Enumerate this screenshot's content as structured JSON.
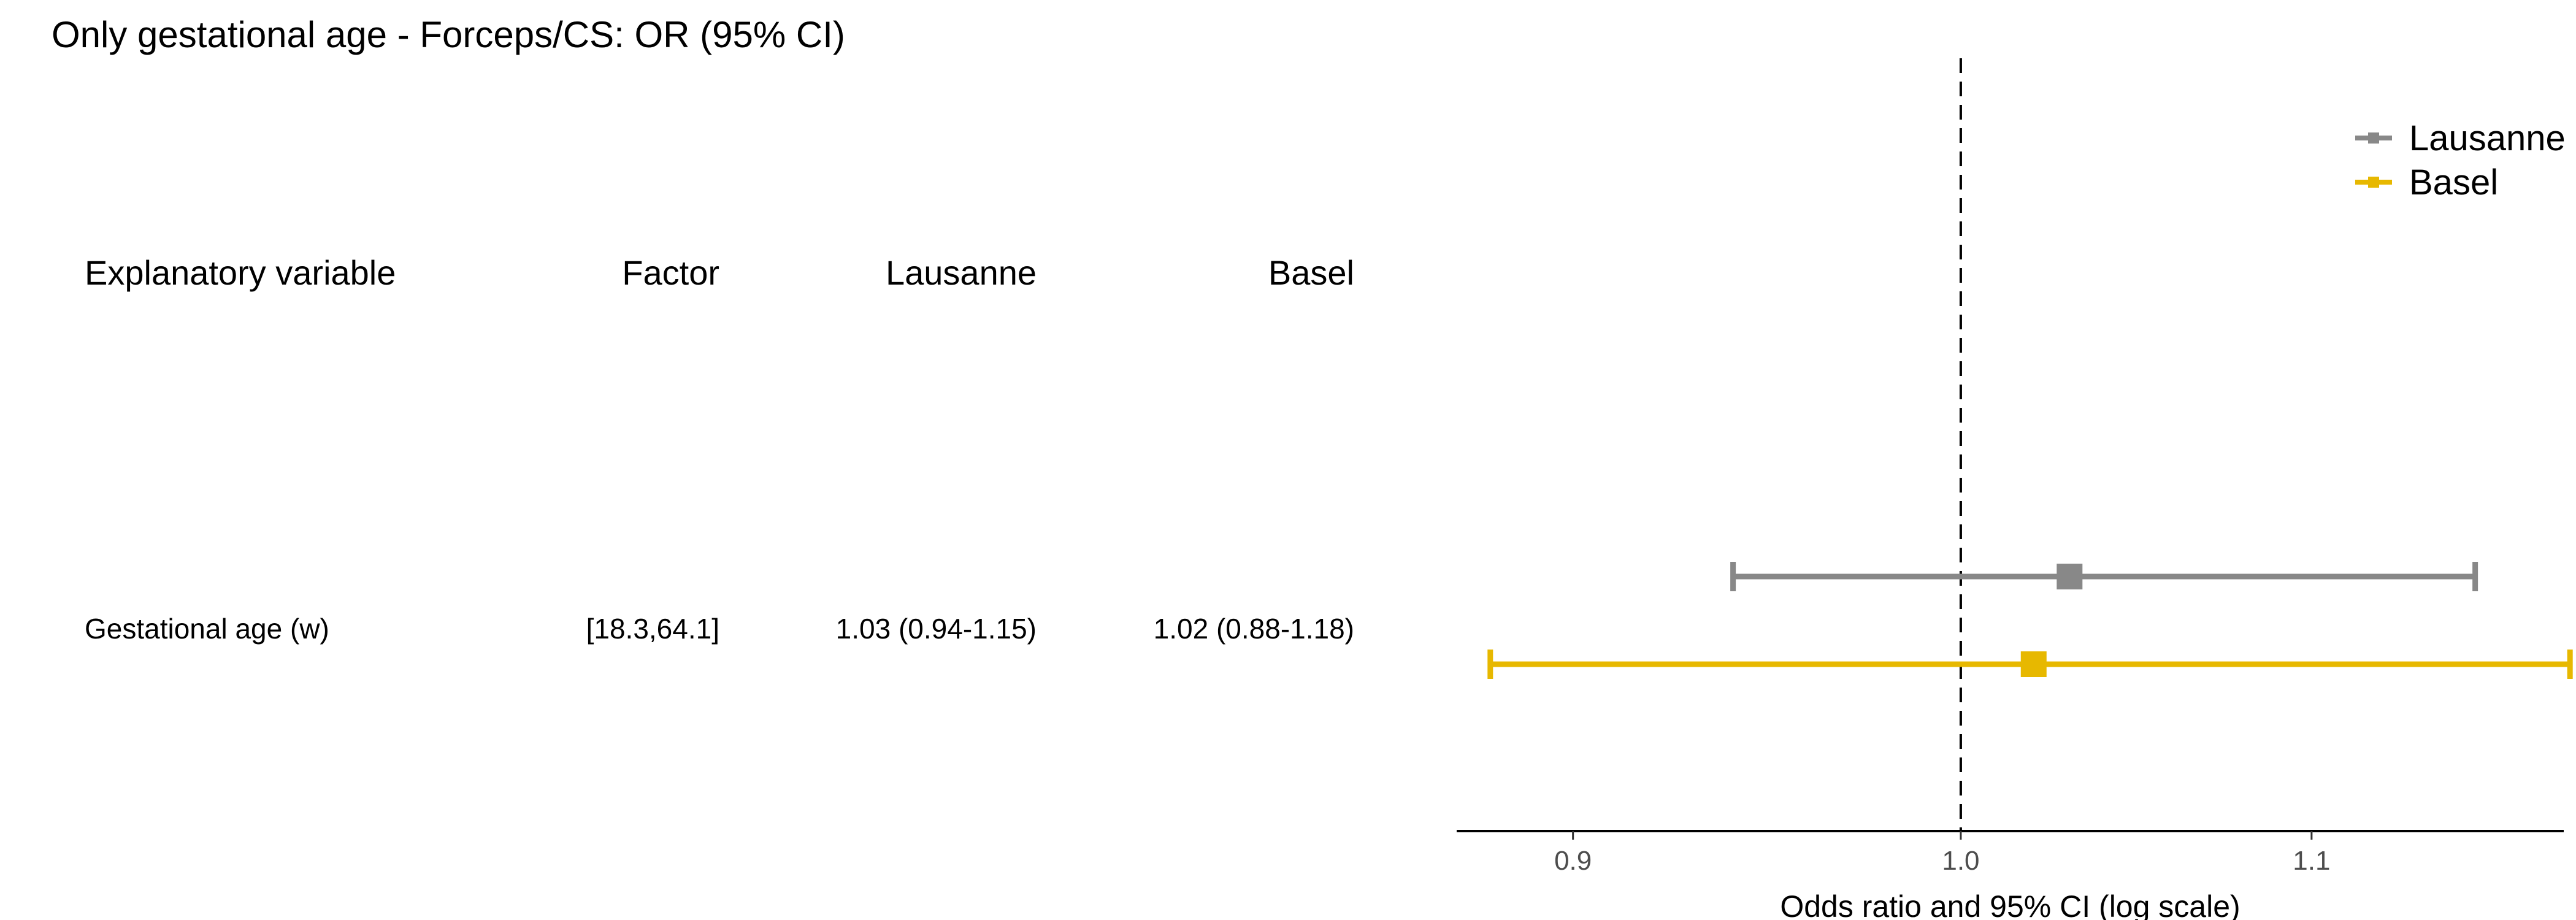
{
  "title": "Only gestational age - Forceps/CS: OR (95% CI)",
  "table": {
    "headers": [
      "Explanatory variable",
      "Factor",
      "Lausanne",
      "Basel"
    ],
    "rows": [
      {
        "variable": "Gestational age (w)",
        "factor": "[18.3,64.1]",
        "lausanne": "1.03 (0.94-1.15)",
        "basel": "1.02 (0.88-1.18)"
      }
    ]
  },
  "chart_data": {
    "type": "forest",
    "title": "Only gestational age - Forceps/CS: OR (95% CI)",
    "xlabel": "Odds ratio and 95% CI (log scale)",
    "x_scale": "log",
    "xlim": [
      0.872,
      1.178
    ],
    "x_ticks": [
      0.9,
      1.0,
      1.1
    ],
    "x_tick_labels": [
      "0.9",
      "1.0",
      "1.1"
    ],
    "reference_line": 1.0,
    "grid": false,
    "legend": "top-right",
    "categories": [
      "Gestational age (w)"
    ],
    "series": [
      {
        "name": "Lausanne",
        "color": "#888888",
        "or": [
          1.03
        ],
        "lower": [
          0.94
        ],
        "upper": [
          1.15
        ]
      },
      {
        "name": "Basel",
        "color": "#E7B800",
        "or": [
          1.02
        ],
        "lower": [
          0.88
        ],
        "upper": [
          1.18
        ]
      }
    ]
  }
}
